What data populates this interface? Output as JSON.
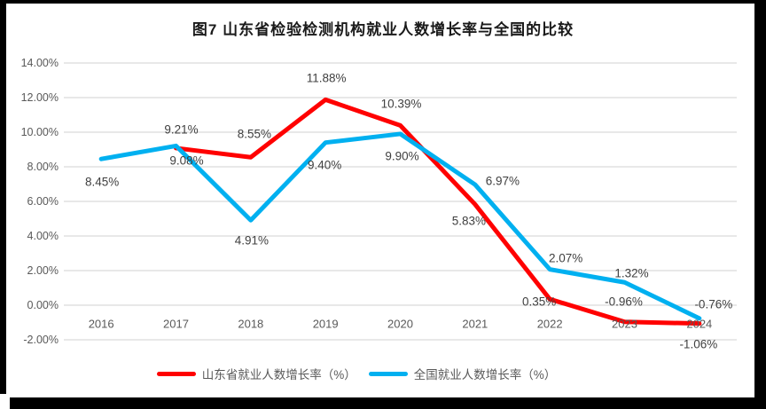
{
  "title": "图7  山东省检验检测机构就业人数增长率与全国的比较",
  "chart_data": {
    "type": "line",
    "title": "图7  山东省检验检测机构就业人数增长率与全国的比较",
    "categories": [
      "2016",
      "2017",
      "2018",
      "2019",
      "2020",
      "2021",
      "2022",
      "2023",
      "2024"
    ],
    "xlabel": "",
    "ylabel": "",
    "y_tick_labels": [
      "14.00%",
      "12.00%",
      "10.00%",
      "8.00%",
      "6.00%",
      "4.00%",
      "2.00%",
      "0.00%",
      "-2.00%"
    ],
    "ylim": [
      -2,
      14
    ],
    "grid": true,
    "gridline_color": "#d9d9d9",
    "axis_label_color": "#595959",
    "data_label_color": "#404040",
    "legend_position": "bottom",
    "series": [
      {
        "name": "山东省就业人数增长率（%）",
        "color": "#ff0000",
        "values": [
          null,
          9.08,
          8.55,
          11.88,
          10.39,
          5.83,
          0.35,
          -0.96,
          -1.06
        ],
        "labels": [
          null,
          "9.08%",
          "8.55%",
          "11.88%",
          "10.39%",
          "5.83%",
          "0.35%",
          "-0.96%",
          "-1.06%"
        ],
        "label_offsets": [
          null,
          [
            12,
            14
          ],
          [
            4,
            -26
          ],
          [
            1,
            -24
          ],
          [
            1,
            -24
          ],
          [
            -7,
            19
          ],
          [
            -12,
            3
          ],
          [
            -1,
            -23
          ],
          [
            -1,
            23
          ]
        ]
      },
      {
        "name": "全国就业人数增长率（%）",
        "color": "#00b0f0",
        "values": [
          8.45,
          9.21,
          4.91,
          9.4,
          9.9,
          6.97,
          2.07,
          1.32,
          -0.76
        ],
        "labels": [
          "8.45%",
          "9.21%",
          "4.91%",
          "9.40%",
          "9.90%",
          "6.97%",
          "2.07%",
          "1.32%",
          "-0.76%"
        ],
        "label_offsets": [
          [
            1,
            26
          ],
          [
            6,
            -18
          ],
          [
            1,
            23
          ],
          [
            -1,
            25
          ],
          [
            2,
            25
          ],
          [
            31,
            -4
          ],
          [
            18,
            -13
          ],
          [
            8,
            -10
          ],
          [
            16,
            -16
          ]
        ]
      }
    ]
  }
}
